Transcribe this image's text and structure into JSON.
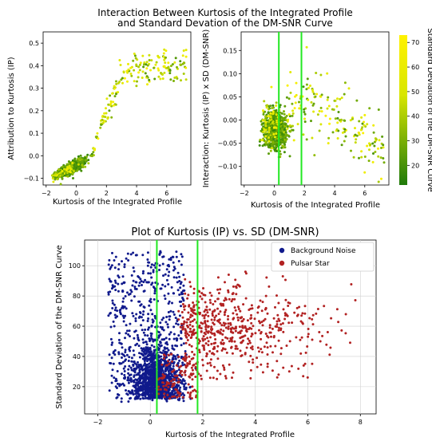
{
  "figure": {
    "title_line1": "Interaction Between Kurtosis of the Integrated Profile",
    "title_line2": "and Standard Devation of the DM-SNR Curve"
  },
  "chart_data": [
    {
      "type": "scatter",
      "xlabel": "Kurtosis of the Integrated Profile",
      "ylabel": "Attribution to Kurtosis (IP)",
      "xlim": [
        -2.2,
        7.6
      ],
      "ylim": [
        -0.13,
        0.55
      ],
      "xticks": [
        "−2",
        "0",
        "2",
        "4",
        "6"
      ],
      "xtick_values": [
        -2,
        0,
        2,
        4,
        6
      ],
      "yticks": [
        "−0.1",
        "0.0",
        "0.1",
        "0.2",
        "0.3",
        "0.4",
        "0.5"
      ],
      "ytick_values": [
        -0.1,
        0.0,
        0.1,
        0.2,
        0.3,
        0.4,
        0.5
      ],
      "color_by": "Standard Deviation of the DM-SNR Curve",
      "trend": [
        [
          -1.5,
          -0.09
        ],
        [
          -0.5,
          -0.06
        ],
        [
          0,
          -0.045
        ],
        [
          0.5,
          -0.03
        ],
        [
          1.0,
          0.0
        ],
        [
          1.3,
          0.06
        ],
        [
          1.7,
          0.14
        ],
        [
          2.2,
          0.24
        ],
        [
          2.8,
          0.32
        ],
        [
          3.5,
          0.37
        ],
        [
          4.5,
          0.39
        ],
        [
          6.0,
          0.4
        ],
        [
          7.3,
          0.41
        ]
      ]
    },
    {
      "type": "scatter",
      "xlabel": "Kurtosis of the Integrated Profile",
      "ylabel": "Interaction: Kurtosis (IP) x SD (DM-SNR)",
      "xlim": [
        -2.2,
        7.6
      ],
      "ylim": [
        -0.14,
        0.19
      ],
      "xticks": [
        "−2",
        "0",
        "2",
        "4",
        "6"
      ],
      "xtick_values": [
        -2,
        0,
        2,
        4,
        6
      ],
      "yticks": [
        "−0.10",
        "−0.05",
        "0.00",
        "0.05",
        "0.10",
        "0.15"
      ],
      "ytick_values": [
        -0.1,
        -0.05,
        0.0,
        0.05,
        0.1,
        0.15
      ],
      "vlines": [
        0.3,
        1.8
      ],
      "colorbar": {
        "label": "Standard Deviation of the DM-SNR Curve",
        "range": [
          12,
          73
        ],
        "ticks": [
          "20",
          "30",
          "40",
          "50",
          "60",
          "70"
        ],
        "tick_values": [
          20,
          30,
          40,
          50,
          60,
          70
        ],
        "colors": [
          "#1f7a0a",
          "#d8e600",
          "#fff200"
        ]
      }
    },
    {
      "type": "scatter",
      "title": "Plot of Kurtosis (IP) vs. SD (DM-SNR)",
      "xlabel": "Kurtosis of the Integrated Profile",
      "ylabel": "Standard Deviation of the DM-SNR Curve",
      "xlim": [
        -2.5,
        8.6
      ],
      "ylim": [
        2,
        117
      ],
      "xticks": [
        "−2",
        "0",
        "2",
        "4",
        "6",
        "8"
      ],
      "xtick_values": [
        -2,
        0,
        2,
        4,
        6,
        8
      ],
      "yticks": [
        "20",
        "40",
        "60",
        "80",
        "100"
      ],
      "ytick_values": [
        20,
        40,
        60,
        80,
        100
      ],
      "grid": true,
      "vlines": [
        0.25,
        1.8
      ],
      "legend_position": "top-right",
      "series": [
        {
          "name": "Background Noise",
          "color": "#101a8c"
        },
        {
          "name": "Pulsar Star",
          "color": "#b22222"
        }
      ]
    }
  ]
}
